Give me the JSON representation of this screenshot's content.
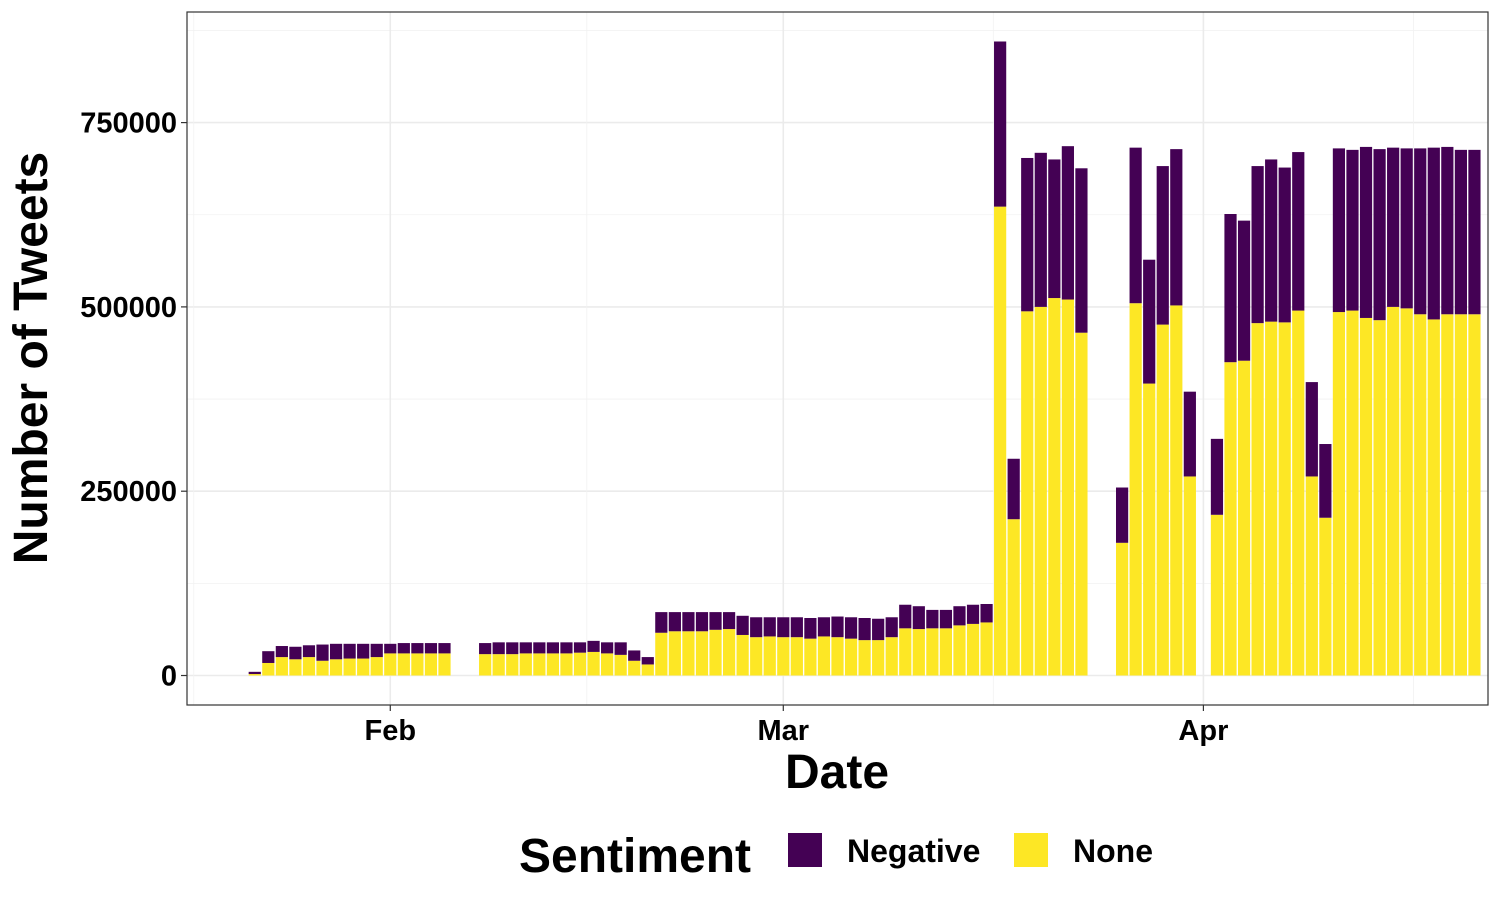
{
  "chart_data": {
    "type": "bar",
    "stacked": true,
    "xlabel": "Date",
    "ylabel": "Number of Tweets",
    "ylim": [
      -40000,
      900000
    ],
    "yticks": [
      0,
      250000,
      500000,
      750000
    ],
    "ytick_labels": [
      "0",
      "250000",
      "500000",
      "750000"
    ],
    "xlim": [
      "2020-01-17",
      "2020-04-22"
    ],
    "xticks": [
      "2020-02-01",
      "2020-03-01",
      "2020-04-01"
    ],
    "xtick_labels": [
      "Feb",
      "Mar",
      "Apr"
    ],
    "grid": true,
    "legend": {
      "title": "Sentiment",
      "position": "bottom",
      "entries": [
        "Negative",
        "None"
      ]
    },
    "colors": {
      "Negative": "#440154",
      "None": "#fde725"
    },
    "dates": [
      "2020-01-22",
      "2020-01-23",
      "2020-01-24",
      "2020-01-25",
      "2020-01-26",
      "2020-01-27",
      "2020-01-28",
      "2020-01-29",
      "2020-01-30",
      "2020-01-31",
      "2020-02-01",
      "2020-02-02",
      "2020-02-03",
      "2020-02-04",
      "2020-02-05",
      "2020-02-08",
      "2020-02-09",
      "2020-02-10",
      "2020-02-11",
      "2020-02-12",
      "2020-02-13",
      "2020-02-14",
      "2020-02-15",
      "2020-02-16",
      "2020-02-17",
      "2020-02-18",
      "2020-02-19",
      "2020-02-20",
      "2020-02-21",
      "2020-02-22",
      "2020-02-23",
      "2020-02-24",
      "2020-02-25",
      "2020-02-26",
      "2020-02-27",
      "2020-02-28",
      "2020-02-29",
      "2020-03-01",
      "2020-03-02",
      "2020-03-03",
      "2020-03-04",
      "2020-03-05",
      "2020-03-06",
      "2020-03-07",
      "2020-03-08",
      "2020-03-09",
      "2020-03-10",
      "2020-03-11",
      "2020-03-12",
      "2020-03-13",
      "2020-03-14",
      "2020-03-15",
      "2020-03-16",
      "2020-03-17",
      "2020-03-18",
      "2020-03-19",
      "2020-03-20",
      "2020-03-21",
      "2020-03-22",
      "2020-03-23",
      "2020-03-24",
      "2020-03-26",
      "2020-03-27",
      "2020-03-28",
      "2020-03-29",
      "2020-03-30",
      "2020-03-31",
      "2020-04-02",
      "2020-04-03",
      "2020-04-04",
      "2020-04-05",
      "2020-04-06",
      "2020-04-07",
      "2020-04-08",
      "2020-04-09",
      "2020-04-10",
      "2020-04-11",
      "2020-04-12",
      "2020-04-13",
      "2020-04-14",
      "2020-04-15",
      "2020-04-16",
      "2020-04-17",
      "2020-04-18",
      "2020-04-19",
      "2020-04-20",
      "2020-04-21"
    ],
    "series": [
      {
        "name": "None",
        "values": [
          2000,
          17000,
          25000,
          22000,
          25000,
          20000,
          22000,
          23000,
          23000,
          25000,
          30000,
          30000,
          30000,
          30000,
          30000,
          29000,
          29000,
          29000,
          30000,
          30000,
          30000,
          30000,
          31000,
          32000,
          30000,
          28000,
          20000,
          15000,
          58000,
          60000,
          60000,
          60000,
          62000,
          63000,
          55000,
          52000,
          53000,
          52000,
          52000,
          50000,
          53000,
          52000,
          50000,
          48000,
          48000,
          52000,
          64000,
          63000,
          64000,
          64000,
          68000,
          70000,
          72000,
          636000,
          212000,
          494000,
          500000,
          512000,
          510000,
          465000,
          0,
          180000,
          505000,
          396000,
          476000,
          502000,
          270000,
          218000,
          425000,
          427000,
          478000,
          480000,
          479000,
          495000,
          270000,
          214000,
          493000,
          495000,
          485000,
          482000,
          500000,
          498000,
          490000,
          483000,
          490000,
          490000,
          490000
        ]
      },
      {
        "name": "Negative",
        "values": [
          3000,
          16000,
          15000,
          17000,
          16000,
          22000,
          21000,
          20000,
          20000,
          18000,
          13000,
          14000,
          14000,
          14000,
          14000,
          15000,
          16000,
          16000,
          15000,
          15000,
          15000,
          15000,
          14000,
          15000,
          15000,
          17000,
          14000,
          10000,
          28000,
          26000,
          26000,
          26000,
          24000,
          23000,
          26000,
          27000,
          26000,
          27000,
          27000,
          28000,
          26000,
          28000,
          29000,
          30000,
          29000,
          27000,
          32000,
          31000,
          25000,
          25000,
          26000,
          26000,
          25000,
          224000,
          82000,
          208000,
          209000,
          188000,
          208000,
          223000,
          0,
          75000,
          211000,
          168000,
          215000,
          212000,
          115000,
          103000,
          201000,
          190000,
          213000,
          220000,
          210000,
          215000,
          128000,
          100000,
          222000,
          218000,
          232000,
          232000,
          216000,
          217000,
          225000,
          233000,
          227000,
          223000,
          223000
        ]
      }
    ]
  }
}
